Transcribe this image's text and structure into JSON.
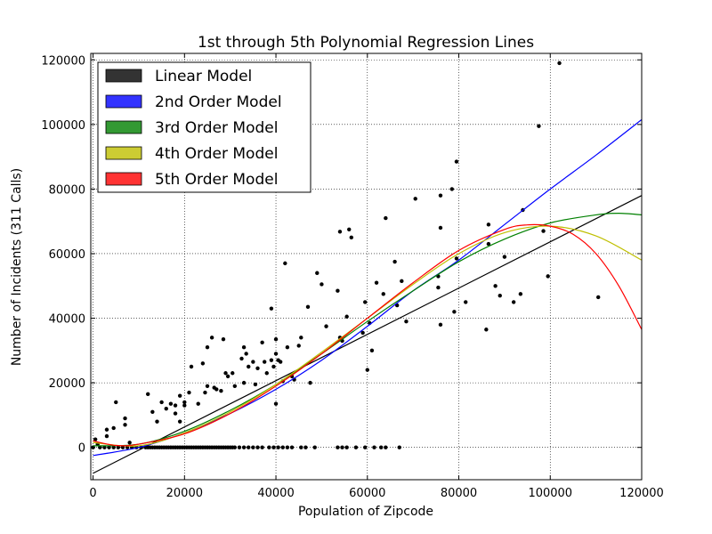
{
  "chart_data": {
    "type": "scatter",
    "title": "1st through 5th Polynomial Regression Lines",
    "xlabel": "Population of Zipcode",
    "ylabel": "Number of Incidents (311 Calls)",
    "xlim": [
      -500,
      120000
    ],
    "ylim": [
      -10000,
      122000
    ],
    "xticks": [
      0,
      20000,
      40000,
      60000,
      80000,
      100000,
      120000
    ],
    "yticks": [
      0,
      20000,
      40000,
      60000,
      80000,
      100000,
      120000
    ],
    "tick_labels_x": [
      "0",
      "20000",
      "40000",
      "60000",
      "80000",
      "100000",
      "120000"
    ],
    "tick_labels_y": [
      "0",
      "20000",
      "40000",
      "60000",
      "80000",
      "100000",
      "120000"
    ],
    "grid": true,
    "grid_style": "dotted",
    "legend_position": "upper-left",
    "series": [
      {
        "name": "Linear Model",
        "color": "#000000",
        "swatch": "#333333",
        "points": [
          [
            0,
            -8000
          ],
          [
            120000,
            78000
          ]
        ]
      },
      {
        "name": "2nd Order Model",
        "color": "#0000ff",
        "swatch": "#3333ff",
        "points": [
          [
            0,
            -2500
          ],
          [
            10000,
            0
          ],
          [
            20000,
            4500
          ],
          [
            30000,
            10500
          ],
          [
            40000,
            18000
          ],
          [
            50000,
            27000
          ],
          [
            60000,
            37500
          ],
          [
            70000,
            48500
          ],
          [
            80000,
            58000
          ],
          [
            90000,
            69000
          ],
          [
            100000,
            80000
          ],
          [
            110000,
            90500
          ],
          [
            120000,
            101500
          ]
        ]
      },
      {
        "name": "3rd Order Model",
        "color": "#008000",
        "swatch": "#339933",
        "points": [
          [
            0,
            500
          ],
          [
            10000,
            1000
          ],
          [
            20000,
            5000
          ],
          [
            30000,
            11500
          ],
          [
            40000,
            19500
          ],
          [
            50000,
            29000
          ],
          [
            60000,
            39000
          ],
          [
            70000,
            48500
          ],
          [
            80000,
            57500
          ],
          [
            90000,
            64500
          ],
          [
            100000,
            69500
          ],
          [
            110000,
            72000
          ],
          [
            115000,
            72500
          ],
          [
            120000,
            72000
          ]
        ]
      },
      {
        "name": "4th Order Model",
        "color": "#bfbf00",
        "swatch": "#cccc33",
        "points": [
          [
            0,
            1500
          ],
          [
            10000,
            500
          ],
          [
            20000,
            4500
          ],
          [
            30000,
            11000
          ],
          [
            40000,
            19500
          ],
          [
            50000,
            29500
          ],
          [
            60000,
            40000
          ],
          [
            70000,
            50500
          ],
          [
            80000,
            60000
          ],
          [
            90000,
            66500
          ],
          [
            100000,
            68500
          ],
          [
            110000,
            65500
          ],
          [
            120000,
            58000
          ]
        ]
      },
      {
        "name": "5th Order Model",
        "color": "#ff0000",
        "swatch": "#ff3333",
        "points": [
          [
            0,
            2000
          ],
          [
            5000,
            600
          ],
          [
            10000,
            1000
          ],
          [
            20000,
            4200
          ],
          [
            30000,
            10500
          ],
          [
            40000,
            19000
          ],
          [
            50000,
            29000
          ],
          [
            60000,
            40000
          ],
          [
            70000,
            51000
          ],
          [
            80000,
            61000
          ],
          [
            90000,
            67500
          ],
          [
            95000,
            68900
          ],
          [
            100000,
            68500
          ],
          [
            105000,
            66000
          ],
          [
            110000,
            60000
          ],
          [
            115000,
            50000
          ],
          [
            120000,
            36500
          ]
        ]
      }
    ],
    "scatter_points": [
      [
        500,
        2500
      ],
      [
        1000,
        1000
      ],
      [
        3000,
        3500
      ],
      [
        3000,
        5500
      ],
      [
        4500,
        6000
      ],
      [
        5000,
        14000
      ],
      [
        7000,
        7000
      ],
      [
        7000,
        9000
      ],
      [
        8000,
        1500
      ],
      [
        12000,
        16500
      ],
      [
        13000,
        11000
      ],
      [
        14000,
        8000
      ],
      [
        15000,
        14000
      ],
      [
        16000,
        12000
      ],
      [
        17000,
        13500
      ],
      [
        18000,
        13000
      ],
      [
        18000,
        10500
      ],
      [
        19000,
        16000
      ],
      [
        19000,
        8000
      ],
      [
        20000,
        14000
      ],
      [
        20000,
        13000
      ],
      [
        21000,
        17000
      ],
      [
        21500,
        25000
      ],
      [
        23000,
        13500
      ],
      [
        24000,
        26000
      ],
      [
        24500,
        17000
      ],
      [
        25000,
        31000
      ],
      [
        25000,
        19000
      ],
      [
        26000,
        34000
      ],
      [
        26500,
        18500
      ],
      [
        27000,
        18000
      ],
      [
        28000,
        17500
      ],
      [
        28500,
        33500
      ],
      [
        29000,
        23000
      ],
      [
        29500,
        22000
      ],
      [
        30500,
        23000
      ],
      [
        31000,
        19000
      ],
      [
        32500,
        27500
      ],
      [
        33000,
        31000
      ],
      [
        33500,
        29000
      ],
      [
        33000,
        20000
      ],
      [
        34000,
        25000
      ],
      [
        35000,
        26500
      ],
      [
        35500,
        19500
      ],
      [
        36000,
        24500
      ],
      [
        37000,
        32500
      ],
      [
        37500,
        26500
      ],
      [
        38000,
        23000
      ],
      [
        39000,
        27000
      ],
      [
        39500,
        25000
      ],
      [
        39000,
        43000
      ],
      [
        40000,
        33500
      ],
      [
        40000,
        29000
      ],
      [
        40000,
        13500
      ],
      [
        40500,
        27000
      ],
      [
        41000,
        26500
      ],
      [
        41500,
        20500
      ],
      [
        42000,
        57000
      ],
      [
        42500,
        31000
      ],
      [
        43500,
        22000
      ],
      [
        44000,
        21000
      ],
      [
        45000,
        31500
      ],
      [
        45500,
        34000
      ],
      [
        47000,
        43500
      ],
      [
        47500,
        20000
      ],
      [
        49000,
        54000
      ],
      [
        50000,
        50500
      ],
      [
        51000,
        37500
      ],
      [
        53500,
        48500
      ],
      [
        54000,
        34000
      ],
      [
        54000,
        66800
      ],
      [
        54500,
        33000
      ],
      [
        55500,
        40500
      ],
      [
        56000,
        67500
      ],
      [
        56500,
        65000
      ],
      [
        59000,
        35500
      ],
      [
        59500,
        45000
      ],
      [
        60000,
        24000
      ],
      [
        60500,
        38500
      ],
      [
        61000,
        30000
      ],
      [
        62000,
        51000
      ],
      [
        63500,
        47500
      ],
      [
        64000,
        71000
      ],
      [
        66000,
        57500
      ],
      [
        66500,
        44000
      ],
      [
        67500,
        51500
      ],
      [
        68500,
        39000
      ],
      [
        70500,
        77000
      ],
      [
        75500,
        49500
      ],
      [
        75500,
        53000
      ],
      [
        76000,
        38000
      ],
      [
        76000,
        68000
      ],
      [
        76000,
        78000
      ],
      [
        78500,
        80000
      ],
      [
        79000,
        42000
      ],
      [
        79500,
        58500
      ],
      [
        79500,
        88500
      ],
      [
        81500,
        45000
      ],
      [
        86000,
        36500
      ],
      [
        86500,
        63000
      ],
      [
        86500,
        69000
      ],
      [
        88000,
        50000
      ],
      [
        89000,
        47000
      ],
      [
        90000,
        59000
      ],
      [
        92000,
        45000
      ],
      [
        93500,
        47500
      ],
      [
        94000,
        73500
      ],
      [
        97500,
        99500
      ],
      [
        98500,
        67000
      ],
      [
        99500,
        53000
      ],
      [
        102000,
        119000
      ],
      [
        110500,
        46500
      ]
    ],
    "zero_points_x": [
      0,
      1500,
      2500,
      3500,
      4500,
      5500,
      6500,
      7500,
      8500,
      9500,
      10500,
      11500,
      12000,
      12500,
      13000,
      13500,
      14000,
      14500,
      15000,
      15500,
      16000,
      16500,
      17000,
      17500,
      18000,
      18500,
      19000,
      19500,
      20000,
      20500,
      21000,
      21500,
      22000,
      22500,
      23000,
      23500,
      24000,
      24500,
      25000,
      25500,
      26000,
      26500,
      27000,
      27500,
      28000,
      28500,
      29000,
      29500,
      30000,
      30500,
      31000,
      32000,
      33000,
      34000,
      35000,
      36000,
      37000,
      38500,
      39500,
      40500,
      41500,
      42500,
      43500,
      45500,
      46500,
      48500,
      53500,
      54500,
      55500,
      57500,
      59500,
      61500,
      63000,
      64000,
      67000
    ]
  }
}
